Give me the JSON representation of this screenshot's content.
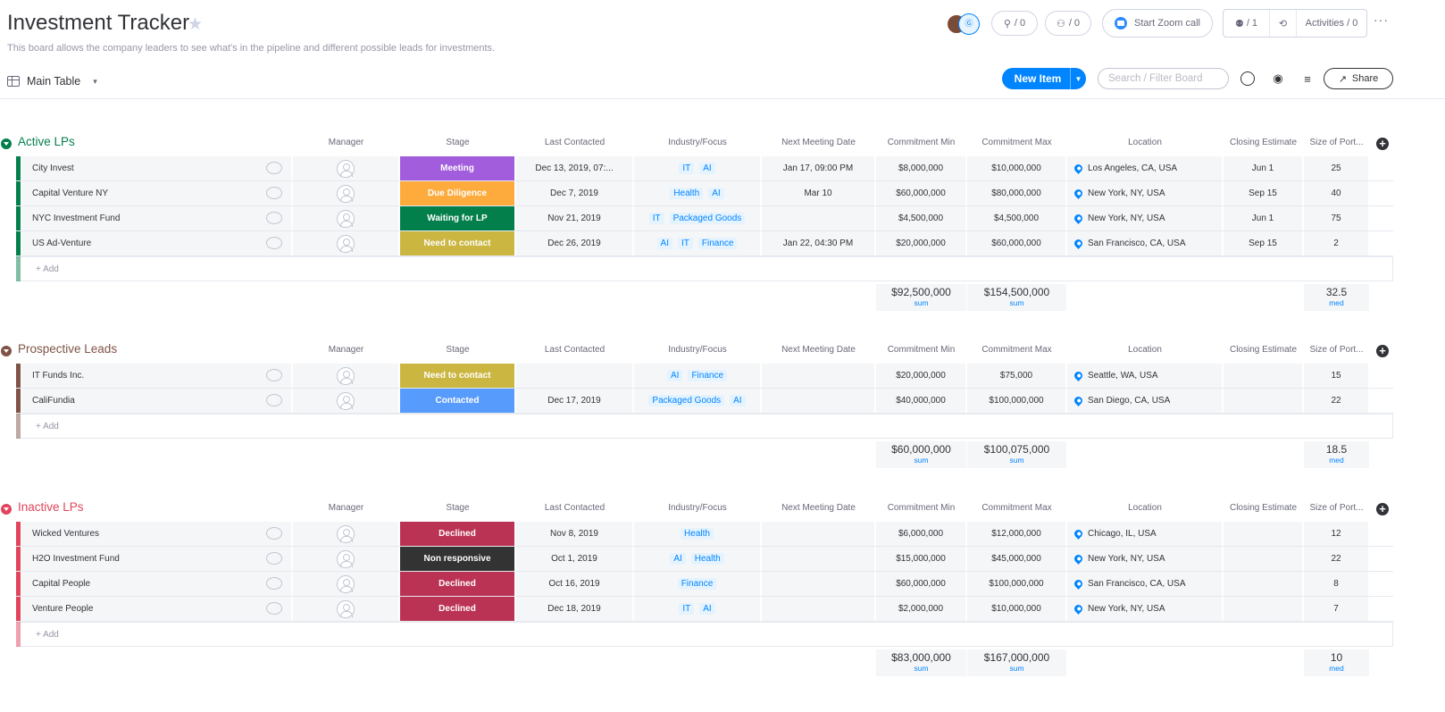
{
  "board": {
    "title": "Investment Tracker",
    "description": "This board allows the company leaders to see what's in the pipeline and different possible leads for investments.",
    "view_label": "Main Table"
  },
  "header": {
    "avatar_badge": "Ⓖ",
    "automations": "/ 0",
    "integrations": "/ 0",
    "zoom_label": "Start Zoom call",
    "members": "/ 1",
    "activities": "Activities / 0",
    "more": "···"
  },
  "toolbar": {
    "new_item": "New Item",
    "search_placeholder": "Search / Filter Board",
    "share": "Share"
  },
  "columns": [
    "Manager",
    "Stage",
    "Last Contacted",
    "Industry/Focus",
    "Next Meeting Date",
    "Commitment Min",
    "Commitment Max",
    "Location",
    "Closing Estimate",
    "Size of Port..."
  ],
  "add_label": "+ Add",
  "groups": [
    {
      "title": "Active LPs",
      "color": "#037f4c",
      "rows": [
        {
          "name": "City Invest",
          "stage": "Meeting",
          "stage_color": "#a25ddc",
          "last": "Dec 13, 2019, 07:...",
          "tags": [
            "IT",
            "AI"
          ],
          "next": "Jan 17, 09:00 PM",
          "min": "$8,000,000",
          "max": "$10,000,000",
          "loc": "Los Angeles, CA, USA",
          "close": "Jun 1",
          "size": "25"
        },
        {
          "name": "Capital Venture NY",
          "stage": "Due Diligence",
          "stage_color": "#fdab3d",
          "last": "Dec 7, 2019",
          "tags": [
            "Health",
            "AI"
          ],
          "next": "Mar 10",
          "min": "$60,000,000",
          "max": "$80,000,000",
          "loc": "New York, NY, USA",
          "close": "Sep 15",
          "size": "40"
        },
        {
          "name": "NYC Investment Fund",
          "stage": "Waiting for LP",
          "stage_color": "#037f4c",
          "last": "Nov 21, 2019",
          "tags": [
            "IT",
            "Packaged Goods"
          ],
          "next": "",
          "min": "$4,500,000",
          "max": "$4,500,000",
          "loc": "New York, NY, USA",
          "close": "Jun 1",
          "size": "75"
        },
        {
          "name": "US Ad-Venture",
          "stage": "Need to contact",
          "stage_color": "#cab641",
          "last": "Dec 26, 2019",
          "tags": [
            "AI",
            "IT",
            "Finance"
          ],
          "next": "Jan 22, 04:30 PM",
          "min": "$20,000,000",
          "max": "$60,000,000",
          "loc": "San Francisco, CA, USA",
          "close": "Sep 15",
          "size": "2"
        }
      ],
      "sum_min": "$92,500,000",
      "sum_max": "$154,500,000",
      "sum_label": "sum",
      "med_size": "32.5",
      "med_label": "med"
    },
    {
      "title": "Prospective Leads",
      "color": "#7f5347",
      "rows": [
        {
          "name": "IT Funds Inc.",
          "stage": "Need to contact",
          "stage_color": "#cab641",
          "last": "",
          "tags": [
            "AI",
            "Finance"
          ],
          "next": "",
          "min": "$20,000,000",
          "max": "$75,000",
          "loc": "Seattle, WA, USA",
          "close": "",
          "size": "15"
        },
        {
          "name": "CaliFundia",
          "stage": "Contacted",
          "stage_color": "#579bfc",
          "last": "Dec 17, 2019",
          "tags": [
            "Packaged Goods",
            "AI"
          ],
          "next": "",
          "min": "$40,000,000",
          "max": "$100,000,000",
          "loc": "San Diego, CA, USA",
          "close": "",
          "size": "22"
        }
      ],
      "sum_min": "$60,000,000",
      "sum_max": "$100,075,000",
      "sum_label": "sum",
      "med_size": "18.5",
      "med_label": "med"
    },
    {
      "title": "Inactive LPs",
      "color": "#e2445c",
      "rows": [
        {
          "name": "Wicked Ventures",
          "stage": "Declined",
          "stage_color": "#bb3354",
          "last": "Nov 8, 2019",
          "tags": [
            "Health"
          ],
          "next": "",
          "min": "$6,000,000",
          "max": "$12,000,000",
          "loc": "Chicago, IL, USA",
          "close": "",
          "size": "12"
        },
        {
          "name": "H2O Investment Fund",
          "stage": "Non responsive",
          "stage_color": "#333333",
          "last": "Oct 1, 2019",
          "tags": [
            "AI",
            "Health"
          ],
          "next": "",
          "min": "$15,000,000",
          "max": "$45,000,000",
          "loc": "New York, NY, USA",
          "close": "",
          "size": "22"
        },
        {
          "name": "Capital People",
          "stage": "Declined",
          "stage_color": "#bb3354",
          "last": "Oct 16, 2019",
          "tags": [
            "Finance"
          ],
          "next": "",
          "min": "$60,000,000",
          "max": "$100,000,000",
          "loc": "San Francisco, CA, USA",
          "close": "",
          "size": "8"
        },
        {
          "name": "Venture People",
          "stage": "Declined",
          "stage_color": "#bb3354",
          "last": "Dec 18, 2019",
          "tags": [
            "IT",
            "AI"
          ],
          "next": "",
          "min": "$2,000,000",
          "max": "$10,000,000",
          "loc": "New York, NY, USA",
          "close": "",
          "size": "7"
        }
      ],
      "sum_min": "$83,000,000",
      "sum_max": "$167,000,000",
      "sum_label": "sum",
      "med_size": "10",
      "med_label": "med"
    }
  ]
}
